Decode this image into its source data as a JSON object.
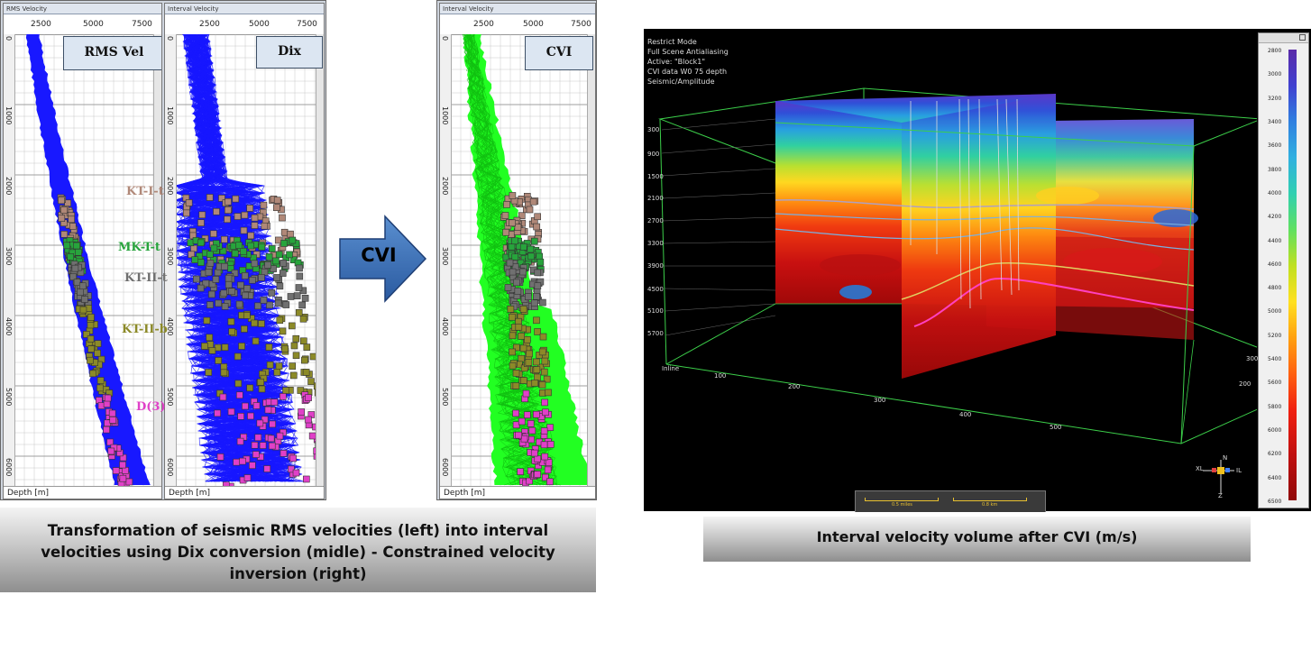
{
  "tracks": {
    "rms": {
      "title": "RMS Velocity",
      "tag": "RMS Vel",
      "foot": "Depth [m]",
      "ticks": [
        "2500",
        "5000",
        "7500"
      ]
    },
    "dix": {
      "title": "Interval Velocity",
      "tag": "Dix",
      "foot": "Depth [m]",
      "ticks": [
        "2500",
        "5000",
        "7500"
      ]
    },
    "cvi": {
      "title": "Interval Velocity",
      "tag": "CVI",
      "foot": "Depth [m]",
      "ticks": [
        "2500",
        "5000",
        "7500"
      ]
    }
  },
  "depth_ticks": [
    "0",
    "1000",
    "2000",
    "3000",
    "4000",
    "5000",
    "6000"
  ],
  "formations": [
    {
      "name": "KT-I-t",
      "color": "#b08878"
    },
    {
      "name": "MK-T-t",
      "color": "#27a43c"
    },
    {
      "name": "KT-II-t",
      "color": "#707070"
    },
    {
      "name": "KT-II-b",
      "color": "#8c8a28"
    },
    {
      "name": "D(3)",
      "color": "#e040c8"
    }
  ],
  "arrow": {
    "label": "CVI"
  },
  "volume": {
    "hud_lines": [
      "Restrict Mode",
      "Full Scene Antialiasing",
      "Active: \"Block1\"",
      "CVI data W0 75 depth",
      "Seismic/Amplitude"
    ],
    "depth_axis": [
      "300",
      "900",
      "1500",
      "2100",
      "2700",
      "3300",
      "3900",
      "4500",
      "5100",
      "5700"
    ],
    "inline_axis_label": "Inline",
    "inline_ticks": [
      "100",
      "200",
      "300",
      "400",
      "500"
    ],
    "xline_ticks": [
      "200",
      "300"
    ],
    "colorbar": [
      "2800",
      "3000",
      "3200",
      "3400",
      "3600",
      "3800",
      "4000",
      "4200",
      "4400",
      "4600",
      "4800",
      "5000",
      "5200",
      "5400",
      "5600",
      "5800",
      "6000",
      "6200",
      "6400",
      "6500"
    ],
    "scalebar": [
      "0.5 miles",
      "0.8 km"
    ],
    "orientation": {
      "x": "XL",
      "n": "N",
      "in": "IL",
      "z": "Z"
    }
  },
  "captions": {
    "left": "Transformation of seismic RMS velocities (left) into interval velocities using Dix conversion (midle) - Constrained velocity inversion (right)",
    "right": "Interval velocity volume after CVI (m/s)"
  }
}
